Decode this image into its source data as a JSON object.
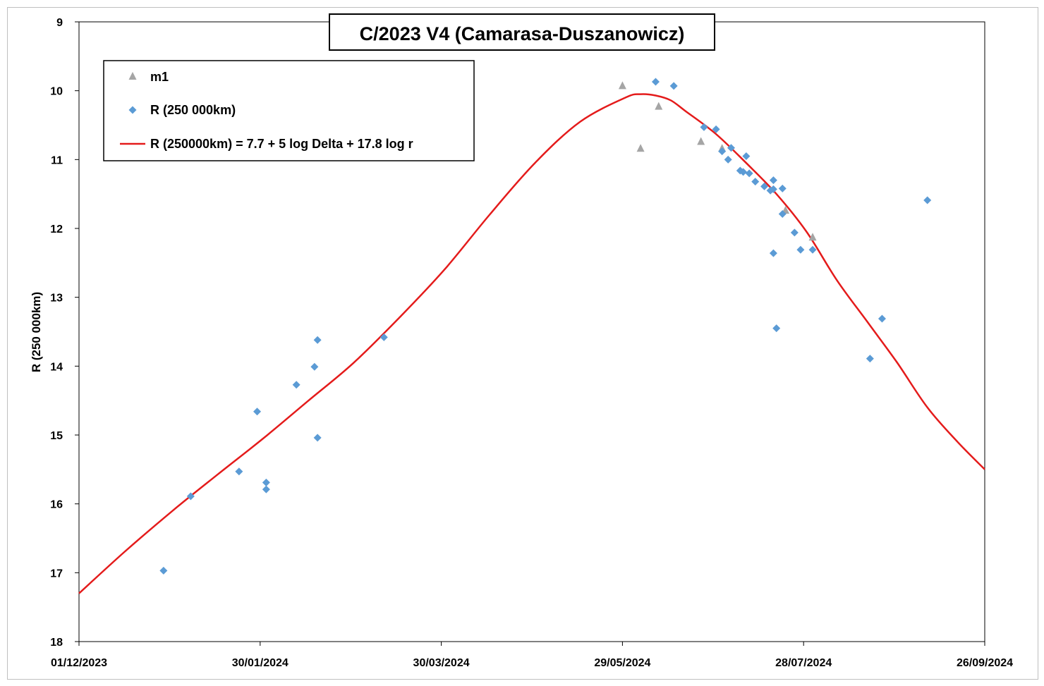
{
  "chart_data": {
    "type": "scatter",
    "title": "C/2023 V4 (Camarasa-Duszanowicz)",
    "ylabel": "R (250 000km)",
    "xlabel": "",
    "ylim": [
      9,
      18
    ],
    "y_inverted": true,
    "y_ticks": [
      "9",
      "10",
      "11",
      "12",
      "13",
      "14",
      "15",
      "16",
      "17",
      "18"
    ],
    "x_tick_labels": [
      "01/12/2023",
      "30/01/2024",
      "30/03/2024",
      "29/05/2024",
      "28/07/2024",
      "26/09/2024"
    ],
    "x_range": [
      "2023-12-01",
      "2024-09-26"
    ],
    "grid": false,
    "legend_position": "top-left",
    "series": [
      {
        "name": "m1",
        "marker": "triangle",
        "color": "#a5a5a5",
        "points": [
          {
            "x": "2024-05-29",
            "y": 9.92
          },
          {
            "x": "2024-06-04",
            "y": 10.83
          },
          {
            "x": "2024-06-10",
            "y": 10.22
          },
          {
            "x": "2024-06-24",
            "y": 10.73
          },
          {
            "x": "2024-07-01",
            "y": 10.83
          },
          {
            "x": "2024-07-22",
            "y": 11.73
          },
          {
            "x": "2024-07-31",
            "y": 12.12
          }
        ]
      },
      {
        "name": "R (250 000km)",
        "marker": "diamond",
        "color": "#5b9bd5",
        "points": [
          {
            "x": "2023-12-29",
            "y": 16.97
          },
          {
            "x": "2024-01-07",
            "y": 15.89
          },
          {
            "x": "2024-01-23",
            "y": 15.53
          },
          {
            "x": "2024-01-29",
            "y": 14.66
          },
          {
            "x": "2024-02-01",
            "y": 15.69
          },
          {
            "x": "2024-02-01",
            "y": 15.79
          },
          {
            "x": "2024-02-11",
            "y": 14.27
          },
          {
            "x": "2024-02-17",
            "y": 14.01
          },
          {
            "x": "2024-02-18",
            "y": 13.62
          },
          {
            "x": "2024-02-18",
            "y": 15.04
          },
          {
            "x": "2024-03-11",
            "y": 13.58
          },
          {
            "x": "2024-06-09",
            "y": 9.87
          },
          {
            "x": "2024-06-15",
            "y": 9.93
          },
          {
            "x": "2024-06-25",
            "y": 10.53
          },
          {
            "x": "2024-06-29",
            "y": 10.56
          },
          {
            "x": "2024-07-01",
            "y": 10.88
          },
          {
            "x": "2024-07-03",
            "y": 11.0
          },
          {
            "x": "2024-07-04",
            "y": 10.83
          },
          {
            "x": "2024-07-07",
            "y": 11.16
          },
          {
            "x": "2024-07-08",
            "y": 11.18
          },
          {
            "x": "2024-07-09",
            "y": 10.95
          },
          {
            "x": "2024-07-10",
            "y": 11.2
          },
          {
            "x": "2024-07-12",
            "y": 11.32
          },
          {
            "x": "2024-07-15",
            "y": 11.39
          },
          {
            "x": "2024-07-17",
            "y": 11.45
          },
          {
            "x": "2024-07-18",
            "y": 11.3
          },
          {
            "x": "2024-07-18",
            "y": 11.43
          },
          {
            "x": "2024-07-18",
            "y": 12.36
          },
          {
            "x": "2024-07-19",
            "y": 13.45
          },
          {
            "x": "2024-07-21",
            "y": 11.42
          },
          {
            "x": "2024-07-21",
            "y": 11.79
          },
          {
            "x": "2024-07-25",
            "y": 12.06
          },
          {
            "x": "2024-07-27",
            "y": 12.31
          },
          {
            "x": "2024-07-31",
            "y": 12.31
          },
          {
            "x": "2024-08-19",
            "y": 13.89
          },
          {
            "x": "2024-08-23",
            "y": 13.31
          },
          {
            "x": "2024-09-07",
            "y": 11.59
          }
        ]
      },
      {
        "name": "R (250000km) = 7.7 + 5 log Delta + 17.8 log r",
        "type": "line",
        "color": "#e41b1b",
        "points": [
          {
            "x": "2023-12-01",
            "y": 17.3
          },
          {
            "x": "2023-12-16",
            "y": 16.7
          },
          {
            "x": "2024-01-01",
            "y": 16.1
          },
          {
            "x": "2024-01-16",
            "y": 15.57
          },
          {
            "x": "2024-01-31",
            "y": 15.05
          },
          {
            "x": "2024-02-15",
            "y": 14.5
          },
          {
            "x": "2024-03-01",
            "y": 13.95
          },
          {
            "x": "2024-03-16",
            "y": 13.3
          },
          {
            "x": "2024-03-31",
            "y": 12.6
          },
          {
            "x": "2024-04-15",
            "y": 11.8
          },
          {
            "x": "2024-04-30",
            "y": 11.05
          },
          {
            "x": "2024-05-15",
            "y": 10.45
          },
          {
            "x": "2024-05-30",
            "y": 10.1
          },
          {
            "x": "2024-06-04",
            "y": 10.05
          },
          {
            "x": "2024-06-09",
            "y": 10.07
          },
          {
            "x": "2024-06-14",
            "y": 10.14
          },
          {
            "x": "2024-06-19",
            "y": 10.3
          },
          {
            "x": "2024-06-29",
            "y": 10.63
          },
          {
            "x": "2024-07-09",
            "y": 11.05
          },
          {
            "x": "2024-07-19",
            "y": 11.5
          },
          {
            "x": "2024-07-29",
            "y": 12.05
          },
          {
            "x": "2024-08-08",
            "y": 12.75
          },
          {
            "x": "2024-08-18",
            "y": 13.35
          },
          {
            "x": "2024-08-28",
            "y": 13.95
          },
          {
            "x": "2024-09-07",
            "y": 14.6
          },
          {
            "x": "2024-09-17",
            "y": 15.1
          },
          {
            "x": "2024-09-26",
            "y": 15.5
          }
        ]
      }
    ]
  }
}
